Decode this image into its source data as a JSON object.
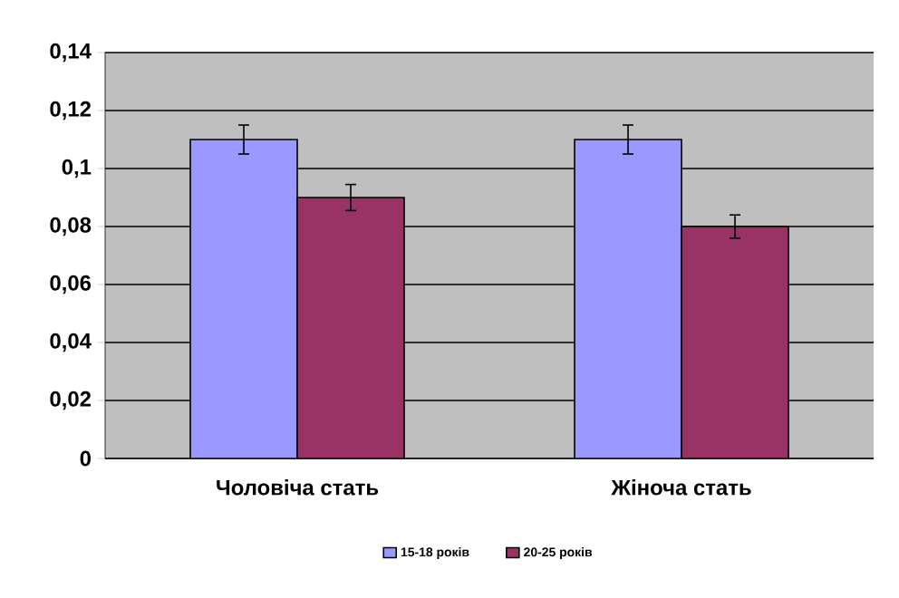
{
  "chart_data": {
    "type": "bar",
    "categories": [
      "Чоловіча стать",
      "Жіноча стать"
    ],
    "series": [
      {
        "name": "15-18 років",
        "color": "#9999ff",
        "values": [
          0.11,
          0.11
        ],
        "errors": [
          0.005,
          0.005
        ]
      },
      {
        "name": "20-25 років",
        "color": "#993366",
        "values": [
          0.09,
          0.08
        ],
        "errors": [
          0.0045,
          0.004
        ]
      }
    ],
    "ylim": [
      0,
      0.14
    ],
    "yticks": [
      {
        "value": 0,
        "label": "0"
      },
      {
        "value": 0.02,
        "label": "0,02"
      },
      {
        "value": 0.04,
        "label": "0,04"
      },
      {
        "value": 0.06,
        "label": "0,06"
      },
      {
        "value": 0.08,
        "label": "0,08"
      },
      {
        "value": 0.1,
        "label": "0,1"
      },
      {
        "value": 0.12,
        "label": "0,12"
      },
      {
        "value": 0.14,
        "label": "0,14"
      }
    ],
    "grid": "y",
    "legend": "bottom"
  }
}
